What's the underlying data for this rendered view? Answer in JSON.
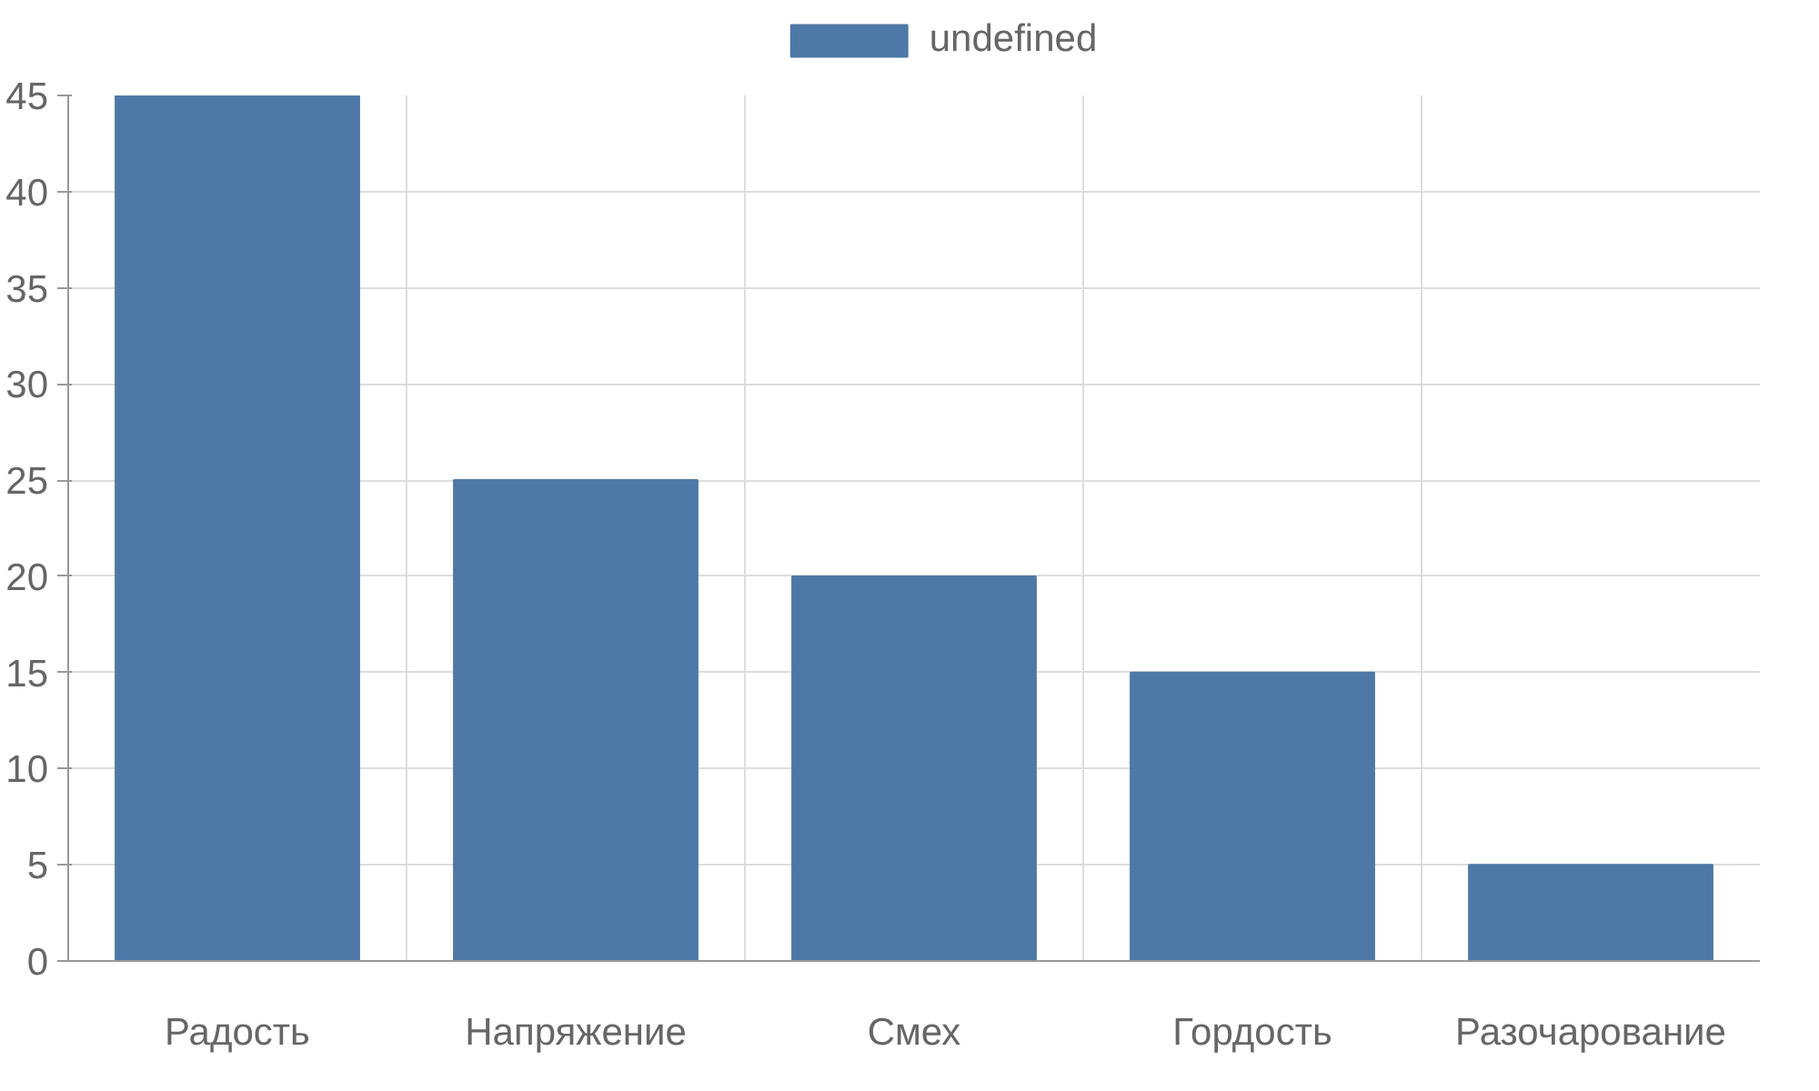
{
  "chart_data": {
    "type": "bar",
    "categories": [
      "Радость",
      "Напряжение",
      "Смех",
      "Гордость",
      "Разочарование"
    ],
    "series": [
      {
        "name": "undefined",
        "color": "#4e79a7",
        "values": [
          45,
          25,
          20,
          15,
          5
        ]
      }
    ],
    "ylim": [
      0,
      45
    ],
    "yticks": [
      0,
      5,
      10,
      15,
      20,
      25,
      30,
      35,
      40,
      45
    ],
    "grid": true,
    "legend": "top"
  }
}
